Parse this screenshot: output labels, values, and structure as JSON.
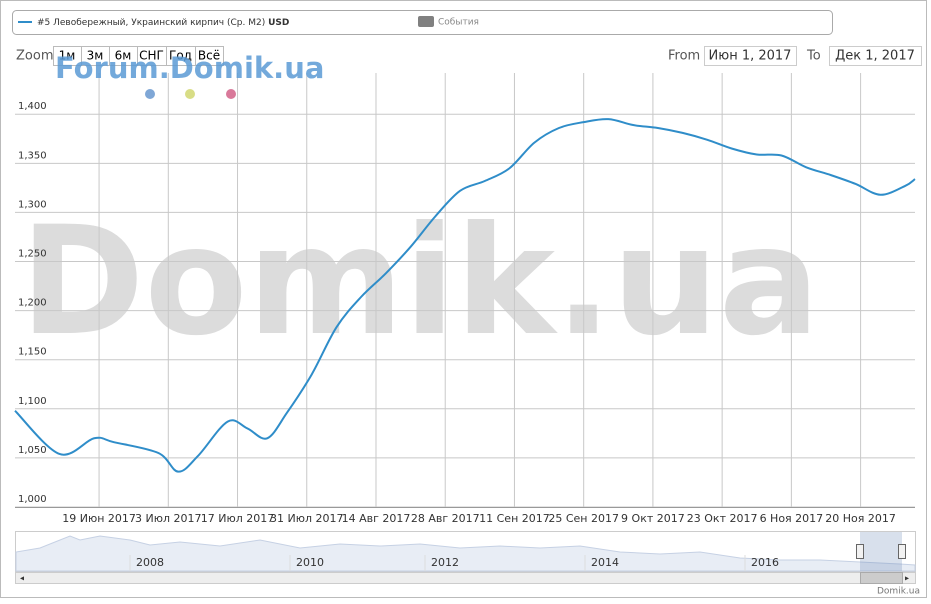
{
  "chart_data": {
    "type": "line",
    "series": [
      {
        "name": "#5 Левобережный, Украинский кирпич (Ср. М2)",
        "unit": "USD",
        "color": "#2f8dc9",
        "x": [
          "2017-06-02",
          "2017-06-11",
          "2017-06-18",
          "2017-06-22",
          "2017-07-01",
          "2017-07-05",
          "2017-07-09",
          "2017-07-15",
          "2017-07-19",
          "2017-07-23",
          "2017-07-27",
          "2017-08-01",
          "2017-08-06",
          "2017-08-11",
          "2017-08-16",
          "2017-08-21",
          "2017-08-26",
          "2017-08-31",
          "2017-09-05",
          "2017-09-10",
          "2017-09-15",
          "2017-09-20",
          "2017-09-25",
          "2017-09-30",
          "2017-10-05",
          "2017-10-10",
          "2017-10-15",
          "2017-10-20",
          "2017-10-25",
          "2017-10-30",
          "2017-11-04",
          "2017-11-09",
          "2017-11-14",
          "2017-11-19",
          "2017-11-24",
          "2017-11-29",
          "2017-12-01"
        ],
        "values": [
          1098,
          1054,
          1070,
          1066,
          1055,
          1036,
          1052,
          1087,
          1080,
          1070,
          1096,
          1135,
          1183,
          1214,
          1238,
          1265,
          1296,
          1322,
          1332,
          1345,
          1371,
          1386,
          1392,
          1395,
          1389,
          1386,
          1381,
          1374,
          1365,
          1359,
          1358,
          1346,
          1338,
          1329,
          1318,
          1327,
          1334
        ]
      }
    ],
    "xlim": [
      "2017-06-02",
      "2017-12-01"
    ],
    "xticks": [
      {
        "value": "2017-06-19",
        "label": "19 Июн 2017"
      },
      {
        "value": "2017-07-03",
        "label": "3 Июл 2017"
      },
      {
        "value": "2017-07-17",
        "label": "17 Июл 2017"
      },
      {
        "value": "2017-07-31",
        "label": "31 Июл 2017"
      },
      {
        "value": "2017-08-14",
        "label": "14 Авг 2017"
      },
      {
        "value": "2017-08-28",
        "label": "28 Авг 2017"
      },
      {
        "value": "2017-09-11",
        "label": "11 Сен 2017"
      },
      {
        "value": "2017-09-25",
        "label": "25 Сен 2017"
      },
      {
        "value": "2017-10-09",
        "label": "9 Окт 2017"
      },
      {
        "value": "2017-10-23",
        "label": "23 Окт 2017"
      },
      {
        "value": "2017-11-06",
        "label": "6 Ноя 2017"
      },
      {
        "value": "2017-11-20",
        "label": "20 Ноя 2017"
      }
    ],
    "ylim": [
      1000,
      1442
    ],
    "yticks": [
      {
        "value": 1000,
        "label": "1,000"
      },
      {
        "value": 1050,
        "label": "1,050"
      },
      {
        "value": 1100,
        "label": "1,100"
      },
      {
        "value": 1150,
        "label": "1,150"
      },
      {
        "value": 1200,
        "label": "1,200"
      },
      {
        "value": 1250,
        "label": "1,250"
      },
      {
        "value": 1300,
        "label": "1,300"
      },
      {
        "value": 1350,
        "label": "1,350"
      },
      {
        "value": 1400,
        "label": "1,400"
      }
    ],
    "grid": true
  },
  "ui": {
    "events_legend": "События",
    "zoom_label": "Zoom",
    "zoom_buttons": [
      "1м",
      "3м",
      "6м",
      "СНГ",
      "Год",
      "Всё"
    ],
    "from_label": "From",
    "from_value": "Июн 1, 2017",
    "to_label": "To",
    "to_value": "Дек 1, 2017",
    "watermark": "Domik.ua",
    "forum": "Forum.Domik.ua",
    "credit": "Domik.ua",
    "navigator_years": [
      "2008",
      "2010",
      "2012",
      "2014",
      "2016"
    ]
  }
}
